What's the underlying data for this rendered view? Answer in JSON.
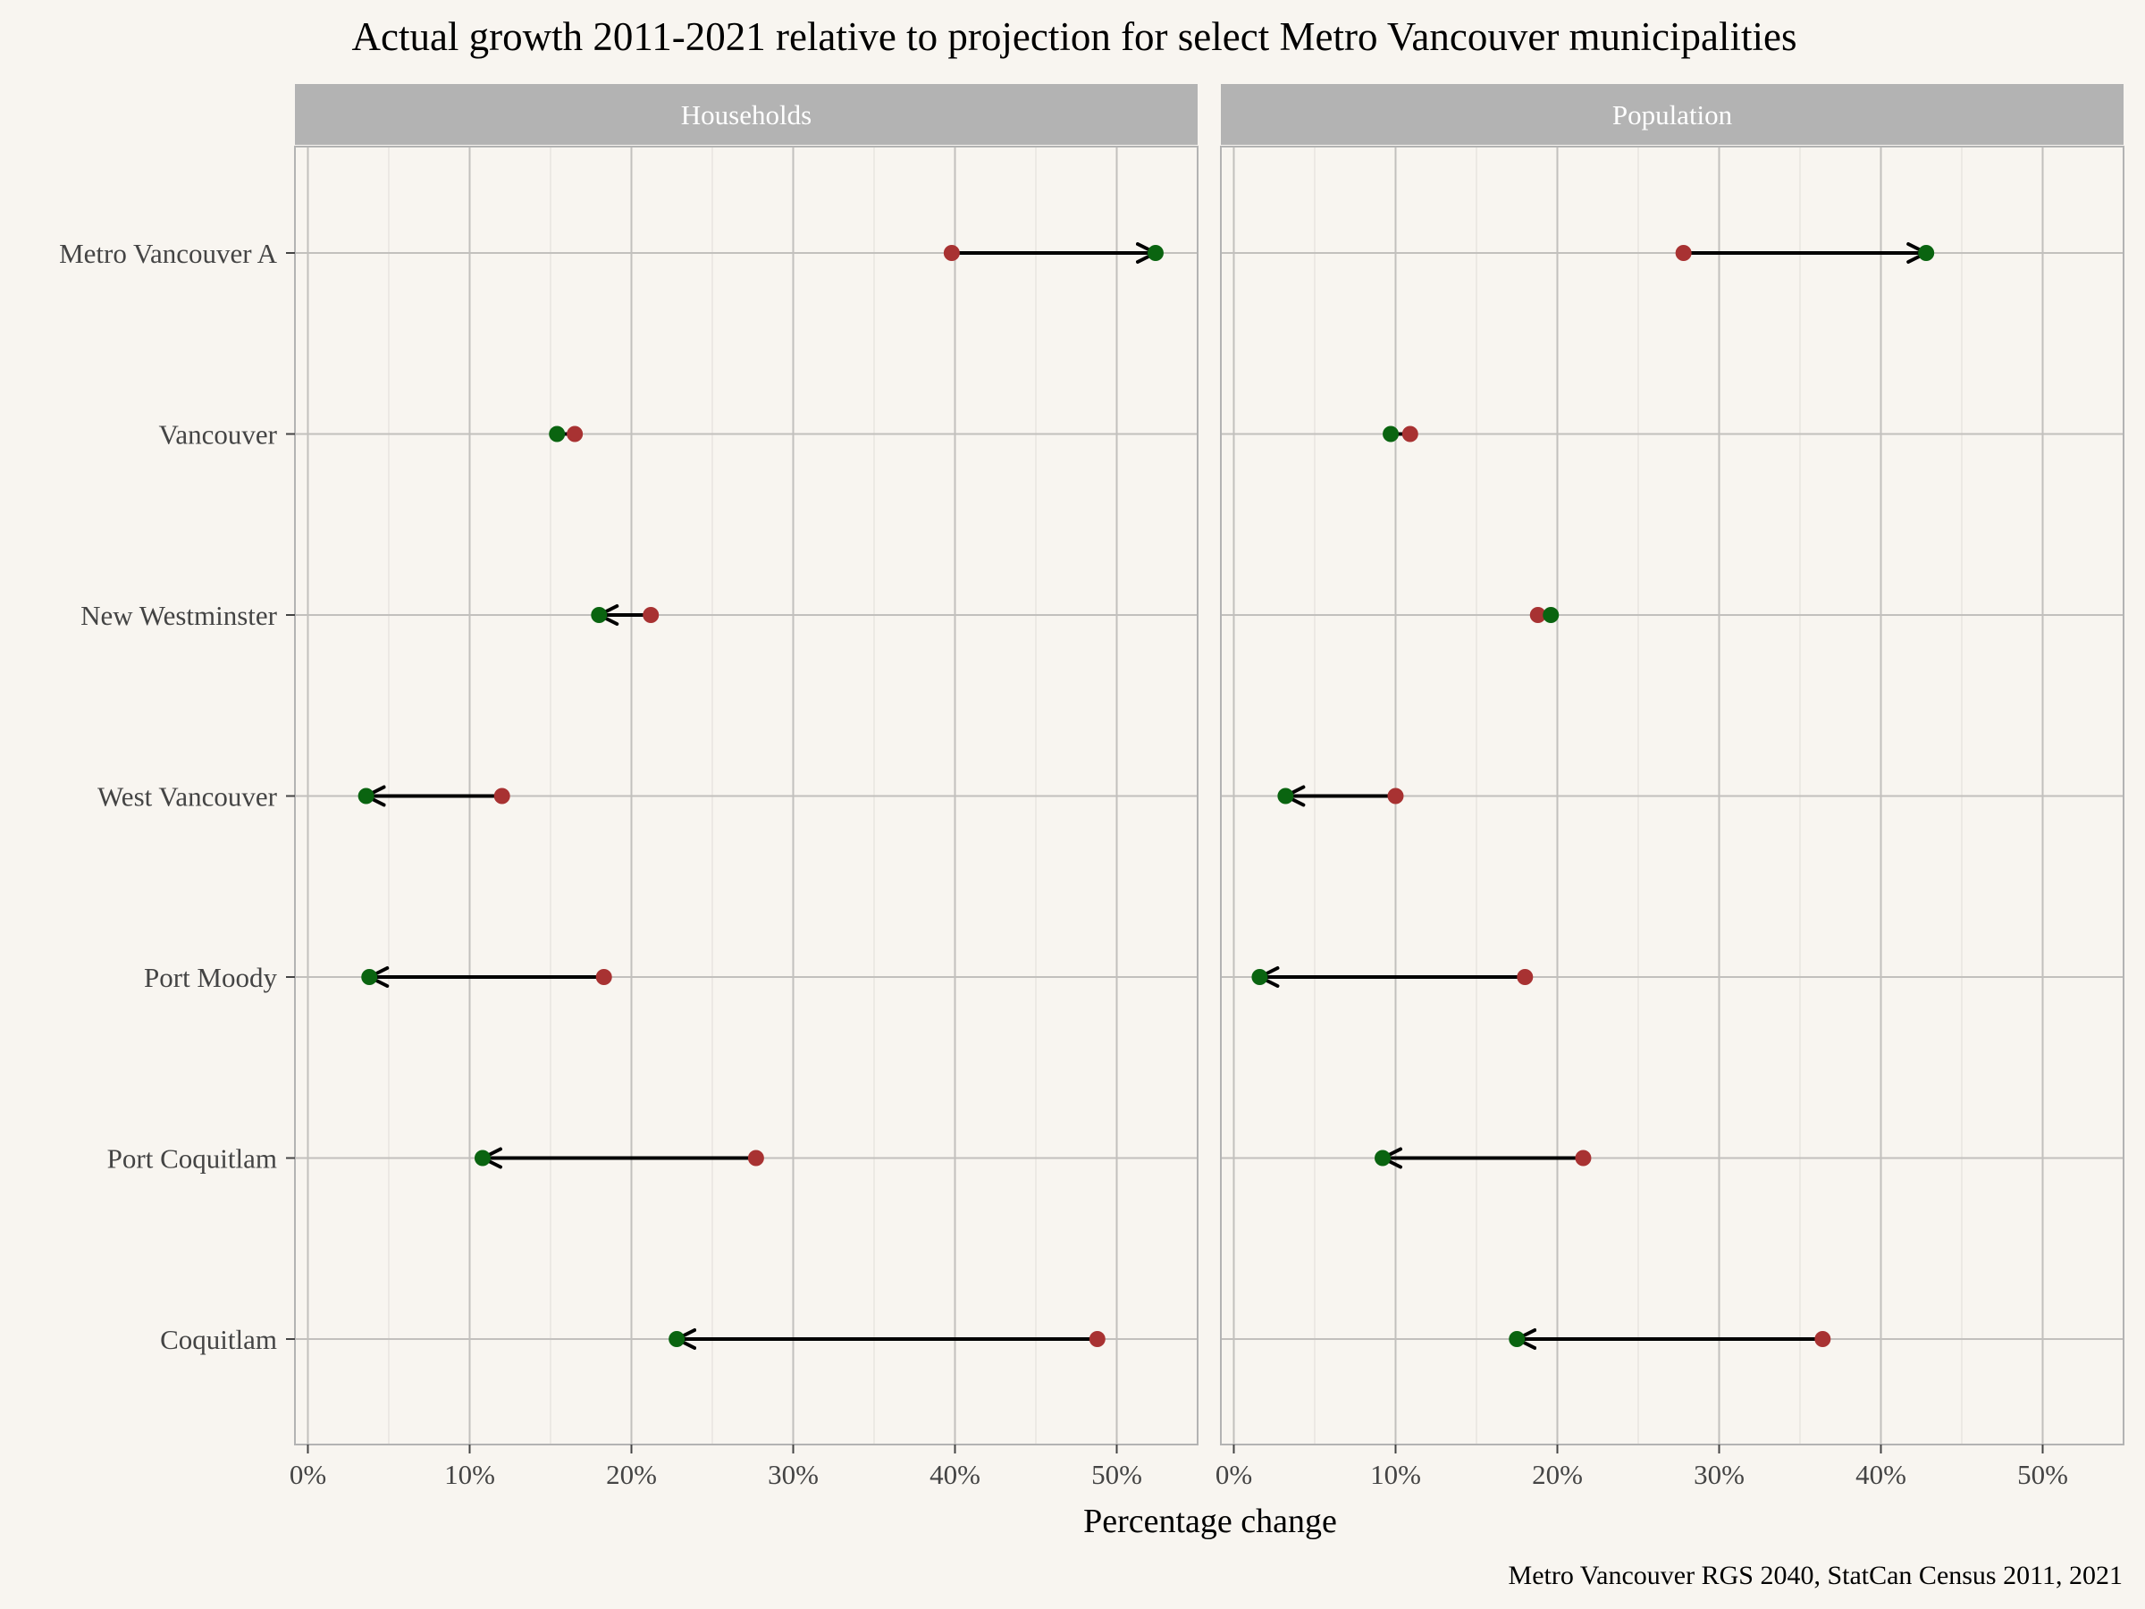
{
  "chart_data": {
    "type": "dumbbell-arrow",
    "title": "Actual growth 2011-2021 relative to projection for select Metro Vancouver municipalities",
    "xlabel": "Percentage change",
    "caption": "Metro Vancouver RGS 2040, StatCan Census 2011, 2021",
    "xlim": [
      0,
      0.55
    ],
    "x_ticks": [
      0,
      0.1,
      0.2,
      0.3,
      0.4,
      0.5
    ],
    "x_tick_labels": [
      "0%",
      "10%",
      "20%",
      "30%",
      "40%",
      "50%"
    ],
    "categories": [
      "Metro Vancouver A",
      "Vancouver",
      "New Westminster",
      "West Vancouver",
      "Port Moody",
      "Port Coquitlam",
      "Coquitlam"
    ],
    "projected_color": "#a83232",
    "actual_color": "#0a6410",
    "facets": [
      {
        "name": "Households",
        "projected": [
          0.398,
          0.165,
          0.212,
          0.12,
          0.183,
          0.277,
          0.488
        ],
        "actual": [
          0.524,
          0.154,
          0.18,
          0.036,
          0.038,
          0.108,
          0.228
        ]
      },
      {
        "name": "Population",
        "projected": [
          0.278,
          0.109,
          0.188,
          0.1,
          0.18,
          0.216,
          0.364
        ],
        "actual": [
          0.428,
          0.097,
          0.196,
          0.032,
          0.016,
          0.092,
          0.175
        ]
      }
    ]
  }
}
